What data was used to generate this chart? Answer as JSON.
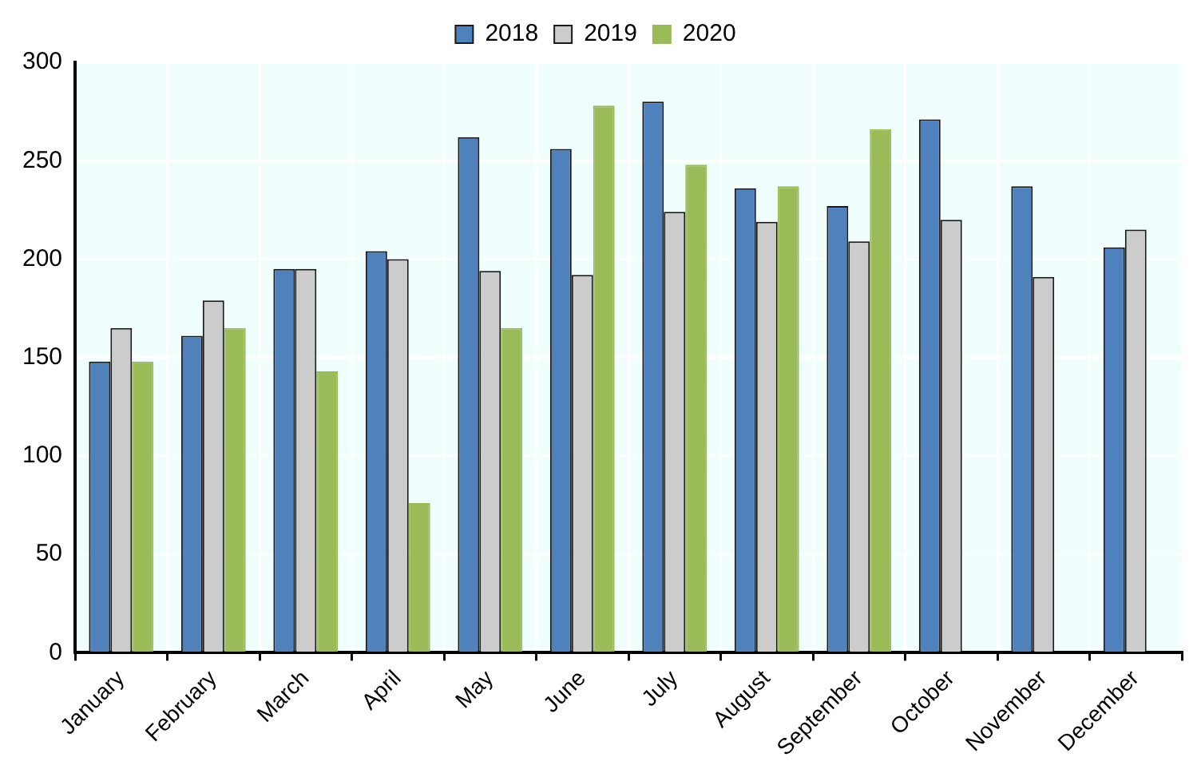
{
  "chart_data": {
    "type": "bar",
    "categories": [
      "January",
      "February",
      "March",
      "April",
      "May",
      "June",
      "July",
      "August",
      "September",
      "October",
      "November",
      "December"
    ],
    "series": [
      {
        "name": "2018",
        "color": "#4f81bd",
        "values": [
          148,
          161,
          195,
          204,
          262,
          256,
          280,
          236,
          227,
          271,
          237,
          206
        ]
      },
      {
        "name": "2019",
        "color": "#cccccc",
        "values": [
          165,
          179,
          195,
          200,
          194,
          192,
          224,
          219,
          209,
          220,
          191,
          215
        ]
      },
      {
        "name": "2020",
        "color": "#9bbb59",
        "values": [
          148,
          165,
          143,
          76,
          165,
          278,
          248,
          237,
          266,
          null,
          null,
          null
        ]
      }
    ],
    "ylim": [
      0,
      300
    ],
    "yticks": [
      0,
      50,
      100,
      150,
      200,
      250,
      300
    ],
    "grid": true,
    "legend": "top"
  }
}
